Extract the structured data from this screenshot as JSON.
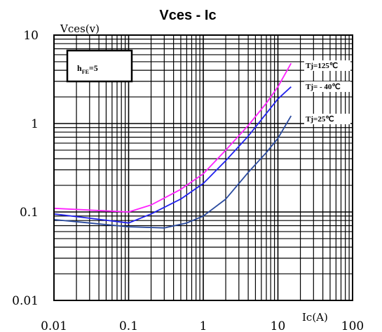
{
  "chart_data": {
    "type": "line",
    "title": "Vces - Ic",
    "xlabel": "Ic(A)",
    "ylabel": "Vces(v)",
    "x_scale": "log",
    "y_scale": "log",
    "xlim": [
      0.01,
      100
    ],
    "ylim": [
      0.01,
      10
    ],
    "grid": true,
    "x_ticks": [
      0.01,
      0.1,
      1,
      10,
      100
    ],
    "x_tick_labels": [
      "0.01",
      "0.1",
      "1",
      "10",
      "100"
    ],
    "y_ticks": [
      0.01,
      0.1,
      1,
      10
    ],
    "y_tick_labels": [
      "0.01",
      "0.1",
      "1",
      "10"
    ],
    "annotation": {
      "label_main": "h",
      "label_sub": "FE",
      "label_value": "=5"
    },
    "series": [
      {
        "name": "Tj=125℃",
        "color": "#ff22ff",
        "x": [
          0.01,
          0.03,
          0.1,
          0.2,
          0.5,
          1,
          2,
          4,
          7,
          10,
          15
        ],
        "y": [
          0.11,
          0.105,
          0.1,
          0.12,
          0.18,
          0.27,
          0.5,
          0.95,
          1.7,
          2.6,
          4.8
        ]
      },
      {
        "name": "Tj= - 40℃",
        "color": "#2222ee",
        "x": [
          0.01,
          0.03,
          0.1,
          0.2,
          0.5,
          1,
          2,
          4,
          7,
          10,
          15
        ],
        "y": [
          0.095,
          0.085,
          0.075,
          0.095,
          0.14,
          0.21,
          0.38,
          0.72,
          1.3,
          1.9,
          2.6
        ]
      },
      {
        "name": "Tj=25℃",
        "color": "#2a4a9e",
        "x": [
          0.01,
          0.03,
          0.1,
          0.3,
          0.6,
          1,
          2,
          4,
          7,
          10,
          15
        ],
        "y": [
          0.082,
          0.075,
          0.068,
          0.066,
          0.075,
          0.09,
          0.14,
          0.28,
          0.47,
          0.68,
          1.22
        ]
      }
    ]
  }
}
